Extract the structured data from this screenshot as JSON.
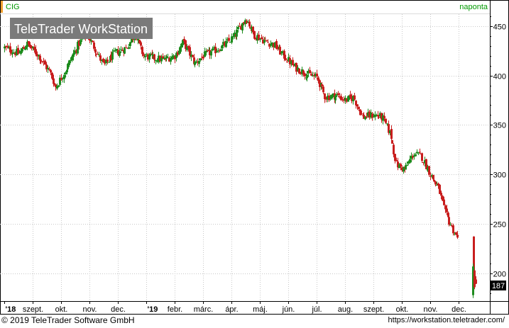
{
  "chart_data": {
    "type": "candlestick",
    "symbol": "CIG",
    "frequency": "naponta",
    "watermark": "TeleTrader WorkStation",
    "last_price": "187",
    "ylim": [
      172,
      462
    ],
    "y_ticks": [
      200,
      250,
      300,
      350,
      400,
      450
    ],
    "x_tick_labels": [
      "'18",
      "szept.",
      "okt.",
      "nov.",
      "dec.",
      "'19",
      "febr.",
      "márc.",
      "ápr.",
      "máj.",
      "jún.",
      "júl.",
      "aug.",
      "szept.",
      "okt.",
      "nov.",
      "dec."
    ],
    "grid": true,
    "colors": {
      "up": "#1e8c1e",
      "down": "#c81e1e",
      "accent_orange": "#f0a030",
      "frequency_text": "#009900"
    },
    "close_series": [
      {
        "m": 0.0,
        "v": 428
      },
      {
        "m": 0.5,
        "v": 422
      },
      {
        "m": 0.8,
        "v": 432
      },
      {
        "m": 1.2,
        "v": 420
      },
      {
        "m": 1.6,
        "v": 403
      },
      {
        "m": 1.8,
        "v": 388
      },
      {
        "m": 2.2,
        "v": 408
      },
      {
        "m": 2.6,
        "v": 432
      },
      {
        "m": 2.9,
        "v": 442
      },
      {
        "m": 3.2,
        "v": 426
      },
      {
        "m": 3.5,
        "v": 410
      },
      {
        "m": 3.9,
        "v": 423
      },
      {
        "m": 4.3,
        "v": 428
      },
      {
        "m": 4.6,
        "v": 442
      },
      {
        "m": 4.9,
        "v": 420
      },
      {
        "m": 5.2,
        "v": 418
      },
      {
        "m": 5.6,
        "v": 416
      },
      {
        "m": 6.0,
        "v": 420
      },
      {
        "m": 6.3,
        "v": 434
      },
      {
        "m": 6.7,
        "v": 412
      },
      {
        "m": 7.0,
        "v": 420
      },
      {
        "m": 7.4,
        "v": 425
      },
      {
        "m": 7.8,
        "v": 432
      },
      {
        "m": 8.1,
        "v": 440
      },
      {
        "m": 8.5,
        "v": 458
      },
      {
        "m": 8.8,
        "v": 441
      },
      {
        "m": 9.1,
        "v": 436
      },
      {
        "m": 9.5,
        "v": 431
      },
      {
        "m": 9.8,
        "v": 421
      },
      {
        "m": 10.2,
        "v": 409
      },
      {
        "m": 10.6,
        "v": 402
      },
      {
        "m": 11.0,
        "v": 398
      },
      {
        "m": 11.3,
        "v": 378
      },
      {
        "m": 11.7,
        "v": 380
      },
      {
        "m": 12.0,
        "v": 375
      },
      {
        "m": 12.3,
        "v": 378
      },
      {
        "m": 12.6,
        "v": 358
      },
      {
        "m": 13.0,
        "v": 360
      },
      {
        "m": 13.3,
        "v": 358
      },
      {
        "m": 13.6,
        "v": 340
      },
      {
        "m": 13.8,
        "v": 310
      },
      {
        "m": 14.1,
        "v": 305
      },
      {
        "m": 14.4,
        "v": 321
      },
      {
        "m": 14.7,
        "v": 318
      },
      {
        "m": 15.0,
        "v": 300
      },
      {
        "m": 15.3,
        "v": 285
      },
      {
        "m": 15.5,
        "v": 262
      },
      {
        "m": 15.7,
        "v": 250
      },
      {
        "m": 15.9,
        "v": 238
      },
      {
        "m": 16.5,
        "v": 197
      },
      {
        "m": 16.62,
        "v": 187
      }
    ]
  },
  "footer": {
    "copyright": "© 2019 TeleTrader Software GmbH",
    "url": "https://workstation.teletrader.com/"
  }
}
